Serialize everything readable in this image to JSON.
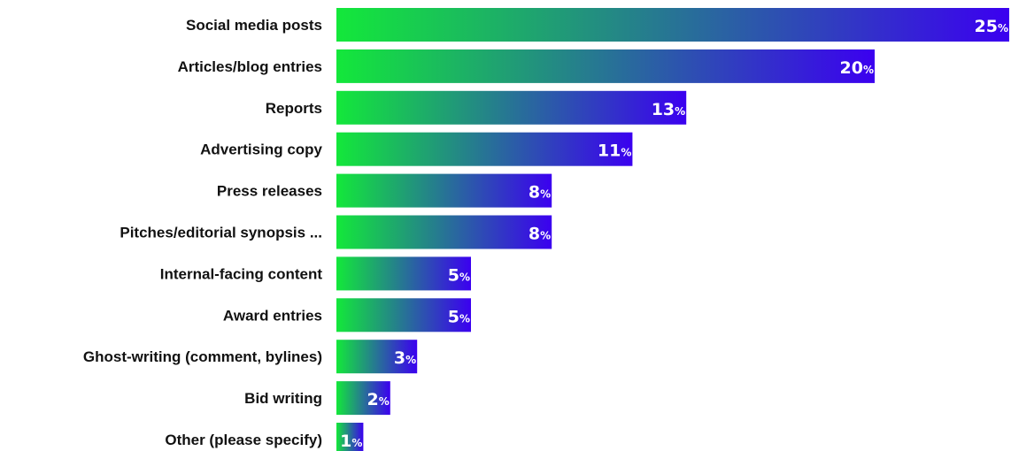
{
  "chart_data": {
    "type": "bar",
    "orientation": "horizontal",
    "title": "",
    "xlabel": "",
    "ylabel": "",
    "categories": [
      "Social media posts",
      "Articles/blog entries",
      "Reports",
      "Advertising copy",
      "Press releases",
      "Pitches/editorial synopsis ...",
      "Internal-facing content",
      "Award entries",
      "Ghost-writing (comment, bylines)",
      "Bid writing",
      "Other (please specify)"
    ],
    "values": [
      25,
      20,
      13,
      11,
      8,
      8,
      5,
      5,
      3,
      2,
      1
    ],
    "value_suffix": "%",
    "xlim": [
      0,
      25
    ],
    "grid": false,
    "legend": "none",
    "colors": {
      "gradient_start": "#13e83a",
      "gradient_end": "#3b00f0",
      "label_text": "#111111",
      "value_text": "#ffffff"
    }
  }
}
